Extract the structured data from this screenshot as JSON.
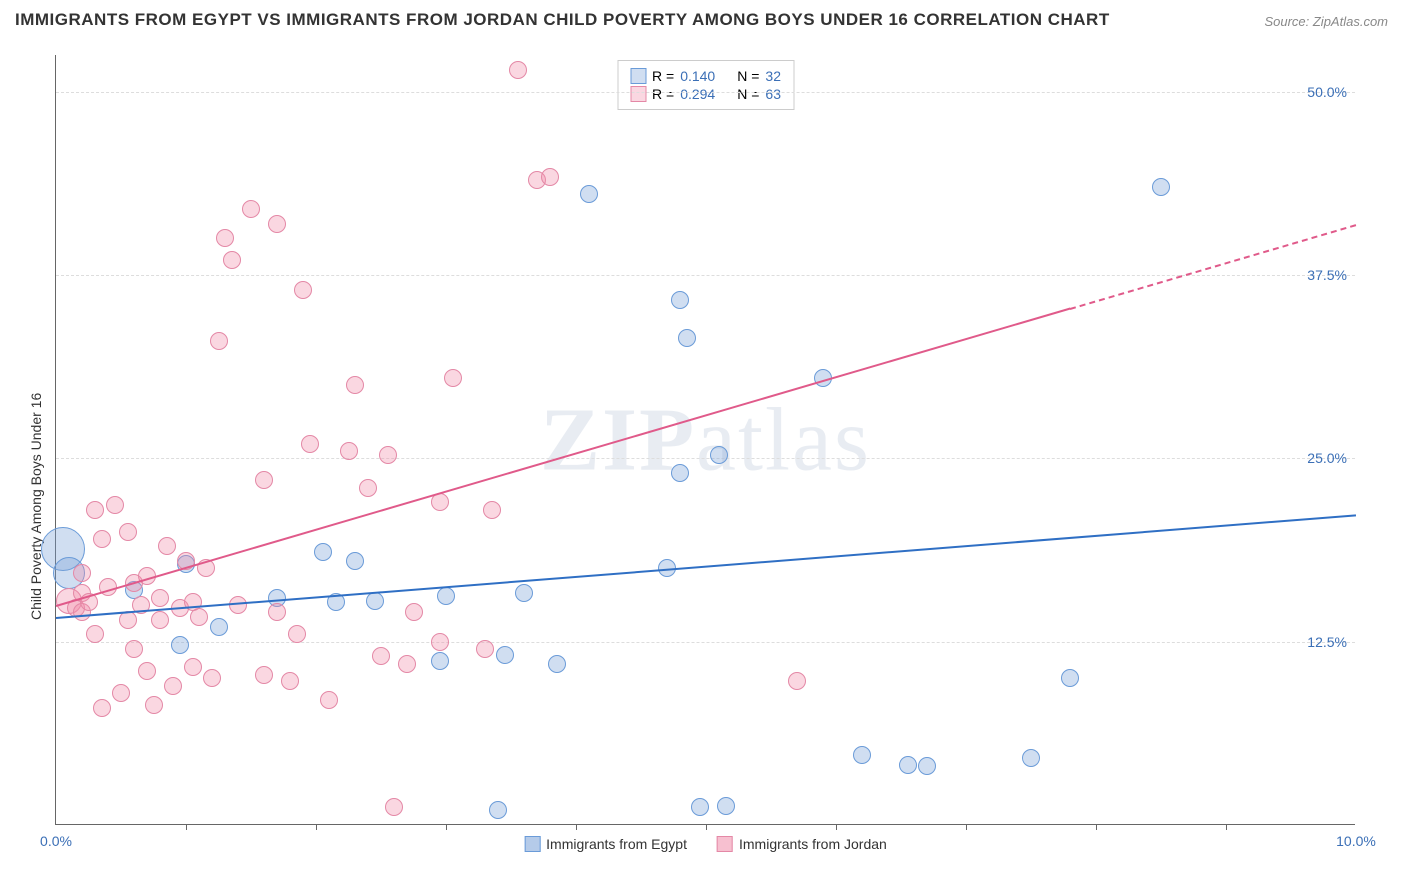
{
  "title": "IMMIGRANTS FROM EGYPT VS IMMIGRANTS FROM JORDAN CHILD POVERTY AMONG BOYS UNDER 16 CORRELATION CHART",
  "source": "Source: ZipAtlas.com",
  "watermark_a": "ZIP",
  "watermark_b": "atlas",
  "y_axis_label": "Child Poverty Among Boys Under 16",
  "chart": {
    "type": "scatter",
    "xlim": [
      0,
      10
    ],
    "ylim": [
      0,
      52.5
    ],
    "x_ticks": [
      0,
      10
    ],
    "x_tick_labels": [
      "0.0%",
      "10.0%"
    ],
    "x_minor_ticks": [
      1,
      2,
      3,
      4,
      5,
      6,
      7,
      8,
      9
    ],
    "y_ticks": [
      12.5,
      25.0,
      37.5,
      50.0
    ],
    "y_tick_labels": [
      "12.5%",
      "25.0%",
      "37.5%",
      "50.0%"
    ],
    "grid_color": "#dddddd",
    "background_color": "#ffffff",
    "axis_color": "#666666",
    "tick_label_color": "#3b6fb6",
    "series": [
      {
        "name": "Immigrants from Egypt",
        "fill": "rgba(120,160,215,0.35)",
        "stroke": "#6a9bd8",
        "line_color": "#2f6fc4",
        "r_value": "0.140",
        "n_value": "32",
        "marker_r": 9,
        "trend": {
          "x1": 0.0,
          "y1": 14.2,
          "x2": 10.0,
          "y2": 21.2,
          "dashed_from_x": 10.0
        },
        "points": [
          {
            "x": 0.05,
            "y": 18.8,
            "r": 22
          },
          {
            "x": 0.1,
            "y": 17.2,
            "r": 16
          },
          {
            "x": 0.6,
            "y": 16.0
          },
          {
            "x": 0.95,
            "y": 12.3
          },
          {
            "x": 1.0,
            "y": 17.8
          },
          {
            "x": 1.7,
            "y": 15.5
          },
          {
            "x": 1.25,
            "y": 13.5
          },
          {
            "x": 2.05,
            "y": 18.6
          },
          {
            "x": 2.15,
            "y": 15.2
          },
          {
            "x": 2.3,
            "y": 18.0
          },
          {
            "x": 2.45,
            "y": 15.3
          },
          {
            "x": 2.95,
            "y": 11.2
          },
          {
            "x": 3.0,
            "y": 15.6
          },
          {
            "x": 3.4,
            "y": 1.0
          },
          {
            "x": 3.45,
            "y": 11.6
          },
          {
            "x": 3.6,
            "y": 15.8
          },
          {
            "x": 3.85,
            "y": 11.0
          },
          {
            "x": 4.1,
            "y": 43.0
          },
          {
            "x": 4.7,
            "y": 17.5
          },
          {
            "x": 4.8,
            "y": 35.8
          },
          {
            "x": 4.8,
            "y": 24.0
          },
          {
            "x": 4.85,
            "y": 33.2
          },
          {
            "x": 4.95,
            "y": 1.2
          },
          {
            "x": 5.1,
            "y": 25.2
          },
          {
            "x": 5.15,
            "y": 1.3
          },
          {
            "x": 5.9,
            "y": 30.5
          },
          {
            "x": 6.2,
            "y": 4.8
          },
          {
            "x": 6.55,
            "y": 4.1
          },
          {
            "x": 6.7,
            "y": 4.0
          },
          {
            "x": 7.5,
            "y": 4.6
          },
          {
            "x": 7.8,
            "y": 10.0
          },
          {
            "x": 8.5,
            "y": 43.5
          }
        ]
      },
      {
        "name": "Immigrants from Jordan",
        "fill": "rgba(240,140,170,0.35)",
        "stroke": "#e488a6",
        "line_color": "#e05a8a",
        "r_value": "0.294",
        "n_value": "63",
        "marker_r": 9,
        "trend": {
          "x1": 0.0,
          "y1": 15.0,
          "x2": 10.0,
          "y2": 41.0,
          "dashed_from_x": 7.8
        },
        "points": [
          {
            "x": 0.1,
            "y": 15.3,
            "r": 13
          },
          {
            "x": 0.15,
            "y": 14.8
          },
          {
            "x": 0.2,
            "y": 15.8
          },
          {
            "x": 0.2,
            "y": 14.5
          },
          {
            "x": 0.2,
            "y": 17.2
          },
          {
            "x": 0.25,
            "y": 15.2
          },
          {
            "x": 0.3,
            "y": 21.5
          },
          {
            "x": 0.3,
            "y": 13.0
          },
          {
            "x": 0.35,
            "y": 19.5
          },
          {
            "x": 0.35,
            "y": 8.0
          },
          {
            "x": 0.4,
            "y": 16.2
          },
          {
            "x": 0.45,
            "y": 21.8
          },
          {
            "x": 0.5,
            "y": 9.0
          },
          {
            "x": 0.55,
            "y": 20.0
          },
          {
            "x": 0.55,
            "y": 14.0
          },
          {
            "x": 0.6,
            "y": 16.5
          },
          {
            "x": 0.6,
            "y": 12.0
          },
          {
            "x": 0.65,
            "y": 15.0
          },
          {
            "x": 0.7,
            "y": 17.0
          },
          {
            "x": 0.7,
            "y": 10.5
          },
          {
            "x": 0.75,
            "y": 8.2
          },
          {
            "x": 0.8,
            "y": 15.5
          },
          {
            "x": 0.8,
            "y": 14.0
          },
          {
            "x": 0.85,
            "y": 19.0
          },
          {
            "x": 0.9,
            "y": 9.5
          },
          {
            "x": 0.95,
            "y": 14.8
          },
          {
            "x": 1.0,
            "y": 18.0
          },
          {
            "x": 1.05,
            "y": 15.2
          },
          {
            "x": 1.05,
            "y": 10.8
          },
          {
            "x": 1.1,
            "y": 14.2
          },
          {
            "x": 1.15,
            "y": 17.5
          },
          {
            "x": 1.2,
            "y": 10.0
          },
          {
            "x": 1.25,
            "y": 33.0
          },
          {
            "x": 1.3,
            "y": 40.0
          },
          {
            "x": 1.35,
            "y": 38.5
          },
          {
            "x": 1.4,
            "y": 15.0
          },
          {
            "x": 1.5,
            "y": 42.0
          },
          {
            "x": 1.6,
            "y": 23.5
          },
          {
            "x": 1.6,
            "y": 10.2
          },
          {
            "x": 1.7,
            "y": 41.0
          },
          {
            "x": 1.7,
            "y": 14.5
          },
          {
            "x": 1.8,
            "y": 9.8
          },
          {
            "x": 1.85,
            "y": 13.0
          },
          {
            "x": 1.9,
            "y": 36.5
          },
          {
            "x": 1.95,
            "y": 26.0
          },
          {
            "x": 2.1,
            "y": 8.5
          },
          {
            "x": 2.25,
            "y": 25.5
          },
          {
            "x": 2.3,
            "y": 30.0
          },
          {
            "x": 2.4,
            "y": 23.0
          },
          {
            "x": 2.5,
            "y": 11.5
          },
          {
            "x": 2.55,
            "y": 25.2
          },
          {
            "x": 2.6,
            "y": 1.2
          },
          {
            "x": 2.7,
            "y": 11.0
          },
          {
            "x": 2.75,
            "y": 14.5
          },
          {
            "x": 2.95,
            "y": 22.0
          },
          {
            "x": 2.95,
            "y": 12.5
          },
          {
            "x": 3.05,
            "y": 30.5
          },
          {
            "x": 3.3,
            "y": 12.0
          },
          {
            "x": 3.35,
            "y": 21.5
          },
          {
            "x": 3.55,
            "y": 51.5
          },
          {
            "x": 3.7,
            "y": 44.0
          },
          {
            "x": 3.8,
            "y": 44.2
          },
          {
            "x": 5.7,
            "y": 9.8
          }
        ]
      }
    ],
    "legend_top": {
      "r_label": "R =",
      "n_label": "N ="
    },
    "legend_bottom": [
      {
        "label": "Immigrants from Egypt",
        "fill": "rgba(120,160,215,0.55)",
        "stroke": "#6a9bd8"
      },
      {
        "label": "Immigrants from Jordan",
        "fill": "rgba(240,140,170,0.55)",
        "stroke": "#e488a6"
      }
    ]
  }
}
